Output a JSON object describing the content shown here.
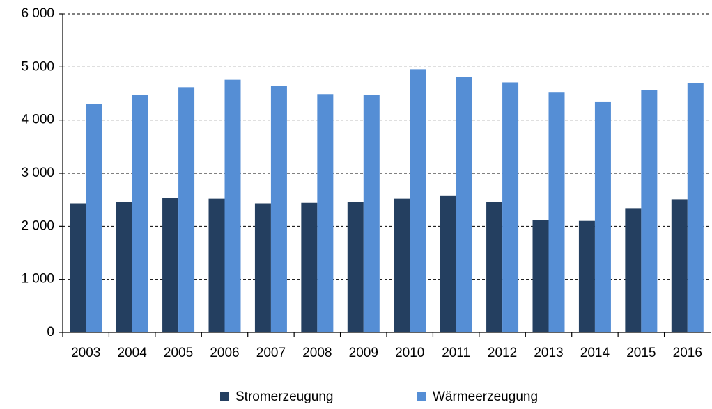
{
  "chart_data": {
    "type": "bar",
    "categories": [
      "2003",
      "2004",
      "2005",
      "2006",
      "2007",
      "2008",
      "2009",
      "2010",
      "2011",
      "2012",
      "2013",
      "2014",
      "2015",
      "2016"
    ],
    "series": [
      {
        "name": "Stromerzeugung",
        "color": "#243f60",
        "values": [
          2430,
          2450,
          2530,
          2520,
          2430,
          2440,
          2450,
          2520,
          2570,
          2460,
          2110,
          2100,
          2340,
          2510
        ]
      },
      {
        "name": "Wärmeerzeugung",
        "color": "#558ed5",
        "values": [
          4300,
          4470,
          4620,
          4760,
          4650,
          4490,
          4470,
          4960,
          4820,
          4710,
          4530,
          4350,
          4560,
          4700
        ]
      }
    ],
    "ylim": [
      0,
      6000
    ],
    "yticks": [
      0,
      {
        "value": 1000,
        "label": "1 000"
      },
      {
        "value": 2000,
        "label": "2 000"
      },
      {
        "value": 3000,
        "label": "3 000"
      },
      {
        "value": 4000,
        "label": "4 000"
      },
      {
        "value": 5000,
        "label": "5 000"
      },
      {
        "value": 6000,
        "label": "6 000"
      }
    ],
    "grid": true,
    "legend": "bottom"
  }
}
